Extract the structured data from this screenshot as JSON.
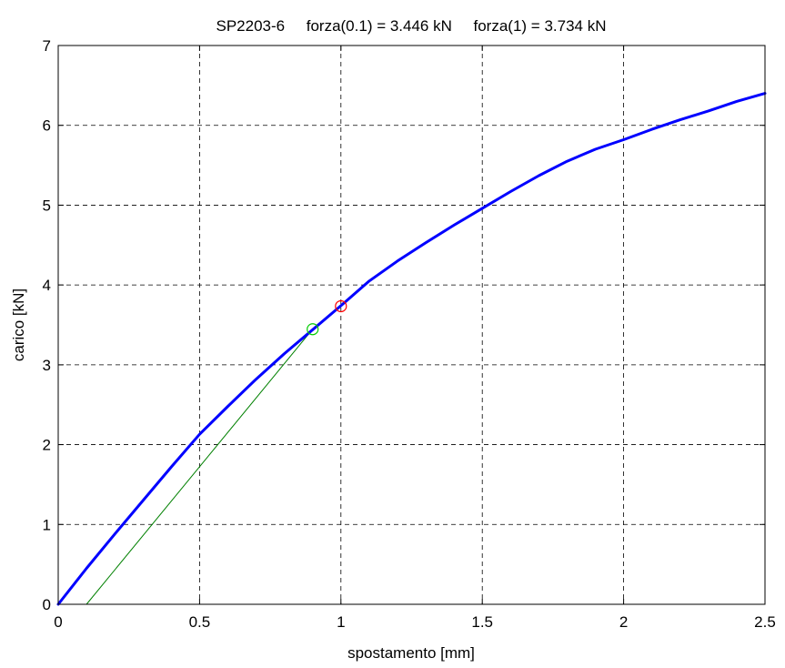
{
  "chart_data": {
    "type": "line",
    "title": "SP2203-6     forza(0.1) = 3.446 kN     forza(1) = 3.734 kN",
    "xlabel": "spostamento [mm]",
    "ylabel": "carico [kN]",
    "xlim": [
      0,
      2.5
    ],
    "ylim": [
      0,
      7
    ],
    "x_ticks": [
      "0",
      "0.5",
      "1",
      "1.5",
      "2",
      "2.5"
    ],
    "y_ticks": [
      "0",
      "1",
      "2",
      "3",
      "4",
      "5",
      "6",
      "7"
    ],
    "grid": true,
    "colors": {
      "load_curve": "#0000ff",
      "offset_line": "#008000",
      "marker_01": "#00cc00",
      "marker_1": "#ff0000",
      "grid": "#000000"
    },
    "series": [
      {
        "kind": "load-curve",
        "x": [
          0,
          0.1,
          0.2,
          0.3,
          0.4,
          0.5,
          0.6,
          0.7,
          0.8,
          0.9,
          1.0,
          1.1,
          1.2,
          1.3,
          1.4,
          1.5,
          1.6,
          1.7,
          1.8,
          1.9,
          2.0,
          2.1,
          2.2,
          2.3,
          2.4,
          2.5
        ],
        "y": [
          0,
          0.45,
          0.88,
          1.3,
          1.72,
          2.13,
          2.48,
          2.82,
          3.14,
          3.44,
          3.74,
          4.05,
          4.3,
          4.53,
          4.75,
          4.96,
          5.17,
          5.37,
          5.55,
          5.7,
          5.82,
          5.95,
          6.07,
          6.18,
          6.3,
          6.4
        ]
      },
      {
        "kind": "offset-line",
        "x": [
          0.1,
          0.9
        ],
        "y": [
          0,
          3.446
        ]
      }
    ],
    "markers": [
      {
        "kind": "forza-0.1",
        "x": 0.9,
        "y": 3.446
      },
      {
        "kind": "forza-1",
        "x": 1.0,
        "y": 3.734
      }
    ]
  }
}
